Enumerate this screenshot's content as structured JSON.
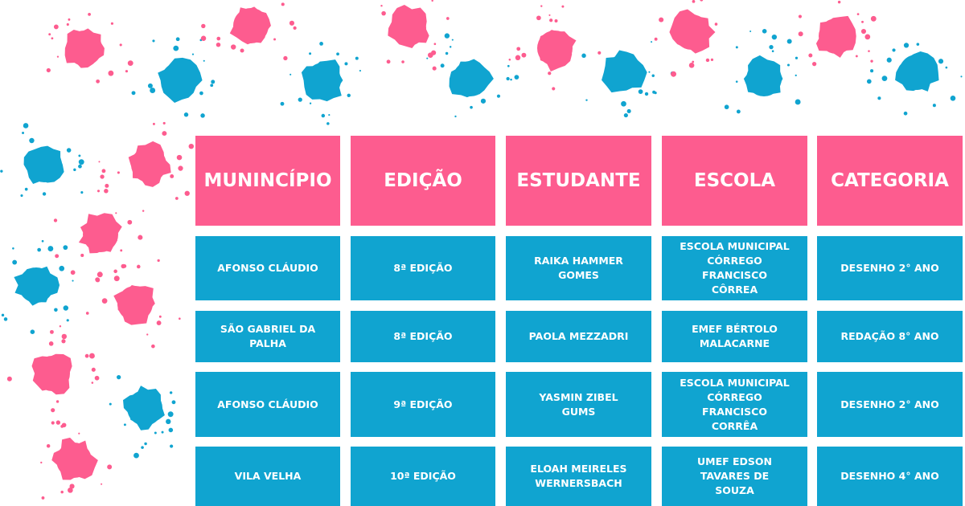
{
  "colors": {
    "header": "#fd5c8f",
    "body": "#10a4d0",
    "splat_pink": "#fd5c8f",
    "splat_blue": "#10a4d0"
  },
  "table": {
    "headers": [
      "MUNINCÍPIO",
      "EDIÇÃO",
      "ESTUDANTE",
      "ESCOLA",
      "CATEGORIA"
    ],
    "rows": [
      [
        "AFONSO CLÁUDIO",
        "8ª EDIÇÃO",
        "RAIKA HAMMER GOMES",
        "ESCOLA MUNICIPAL CÓRREGO FRANCISCO CÔRREA",
        "DESENHO 2° ANO"
      ],
      [
        "SÃO GABRIEL DA PALHA",
        "8ª EDIÇÃO",
        "PAOLA MEZZADRI",
        "EMEF BÉRTOLO MALACARNE",
        "REDAÇÃO 8° ANO"
      ],
      [
        "AFONSO CLÁUDIO",
        "9ª EDIÇÃO",
        "YASMIN ZIBEL GUMS",
        "ESCOLA MUNICIPAL CÓRREGO FRANCISCO CORRÊA",
        "DESENHO 2° ANO"
      ],
      [
        "VILA VELHA",
        "10ª EDIÇÃO",
        "ELOAH MEIRELES WERNERSBACH",
        "UMEF  EDSON TAVARES DE SOUZA",
        "DESENHO 4° ANO"
      ]
    ]
  }
}
